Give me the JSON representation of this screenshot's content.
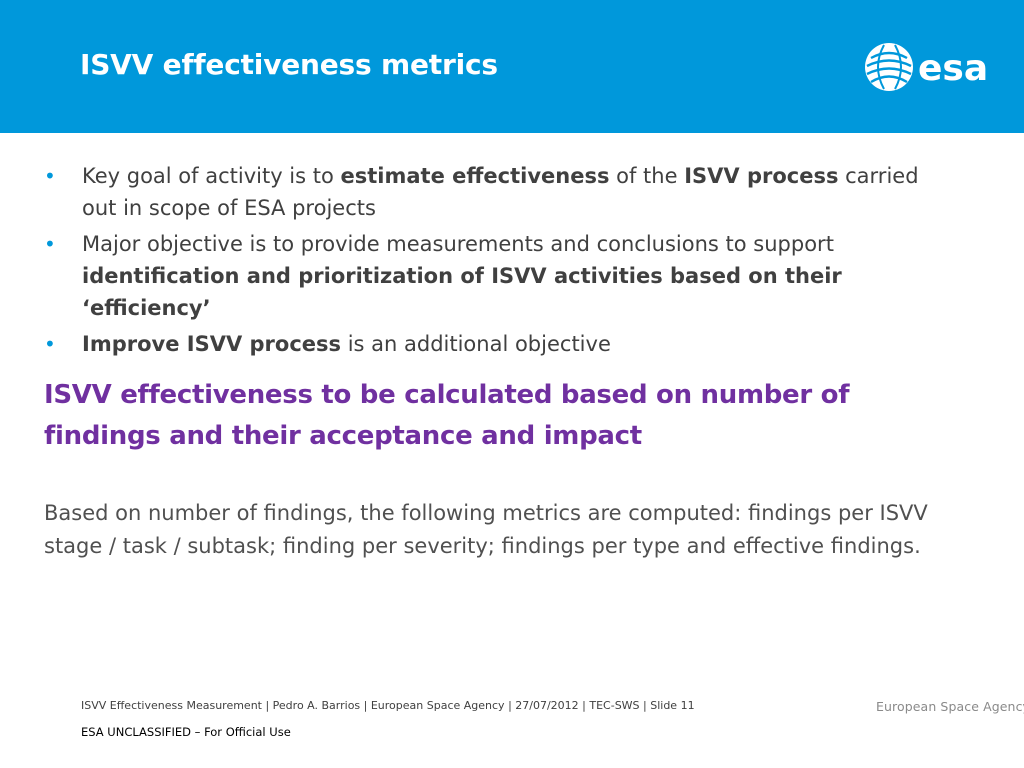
{
  "header": {
    "title": "ISVV effectiveness metrics",
    "logo_text": "esa",
    "background_color": "#0098db"
  },
  "bullets": [
    {
      "pre": "Key goal of activity is to ",
      "bold1": "estimate effectiveness",
      "mid": " of the ",
      "bold2": "ISVV process",
      "post": " carried out in scope of ESA projects"
    },
    {
      "pre": "Major objective is to provide measurements and conclusions to support ",
      "bold1": "identification and prioritization of ISVV activities based on their ‘efficiency’"
    },
    {
      "bold1": "Improve ISVV process",
      "post": " is an additional objective"
    }
  ],
  "highlight": {
    "text": "ISVV effectiveness to be calculated based on number of findings and their acceptance and impact",
    "color": "#7030a0"
  },
  "paragraph": "Based on number of findings, the following metrics are computed: findings per ISVV stage / task / subtask; finding per severity; findings per type and effective findings.",
  "footer": {
    "info": "ISVV Effectiveness Measurement | Pedro A. Barrios | European Space Agency | 27/07/2012 | TEC-SWS | Slide  11",
    "classification": "ESA UNCLASSIFIED – For Official Use",
    "agency": "European Space Agency"
  }
}
